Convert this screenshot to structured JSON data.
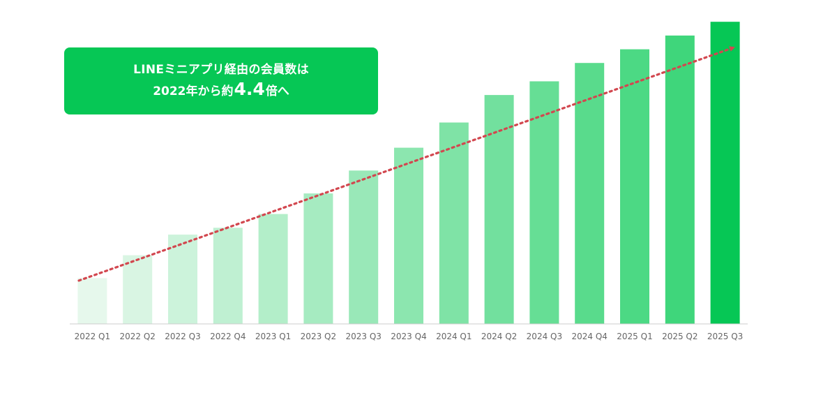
{
  "chart_data": {
    "type": "bar",
    "title": "",
    "xlabel": "",
    "ylabel": "",
    "categories": [
      "2022 Q1",
      "2022 Q2",
      "2022 Q3",
      "2022 Q4",
      "2023 Q1",
      "2023 Q2",
      "2023 Q3",
      "2023 Q4",
      "2024 Q1",
      "2024 Q2",
      "2024 Q3",
      "2024 Q4",
      "2025 Q1",
      "2025 Q2",
      "2025 Q3"
    ],
    "values": [
      1.0,
      1.5,
      1.95,
      2.1,
      2.4,
      2.85,
      3.35,
      3.85,
      4.4,
      5.0,
      5.3,
      5.7,
      6.0,
      6.3,
      6.6
    ],
    "ylim": [
      0,
      7
    ],
    "grid": false,
    "legend": "none",
    "trend_arrow": true,
    "colors": {
      "first": "#e6f8ec",
      "last_light": "#3fd67b",
      "highlight": "#06c755",
      "trend": "#d2474f",
      "axis": "#cccccc",
      "callout_bg": "#06c755"
    }
  },
  "callout": {
    "line1": "LINEミニアプリ経由の会員数は",
    "line2_pre": "2022年から約",
    "line2_big": "4.4",
    "line2_post": "倍へ"
  }
}
